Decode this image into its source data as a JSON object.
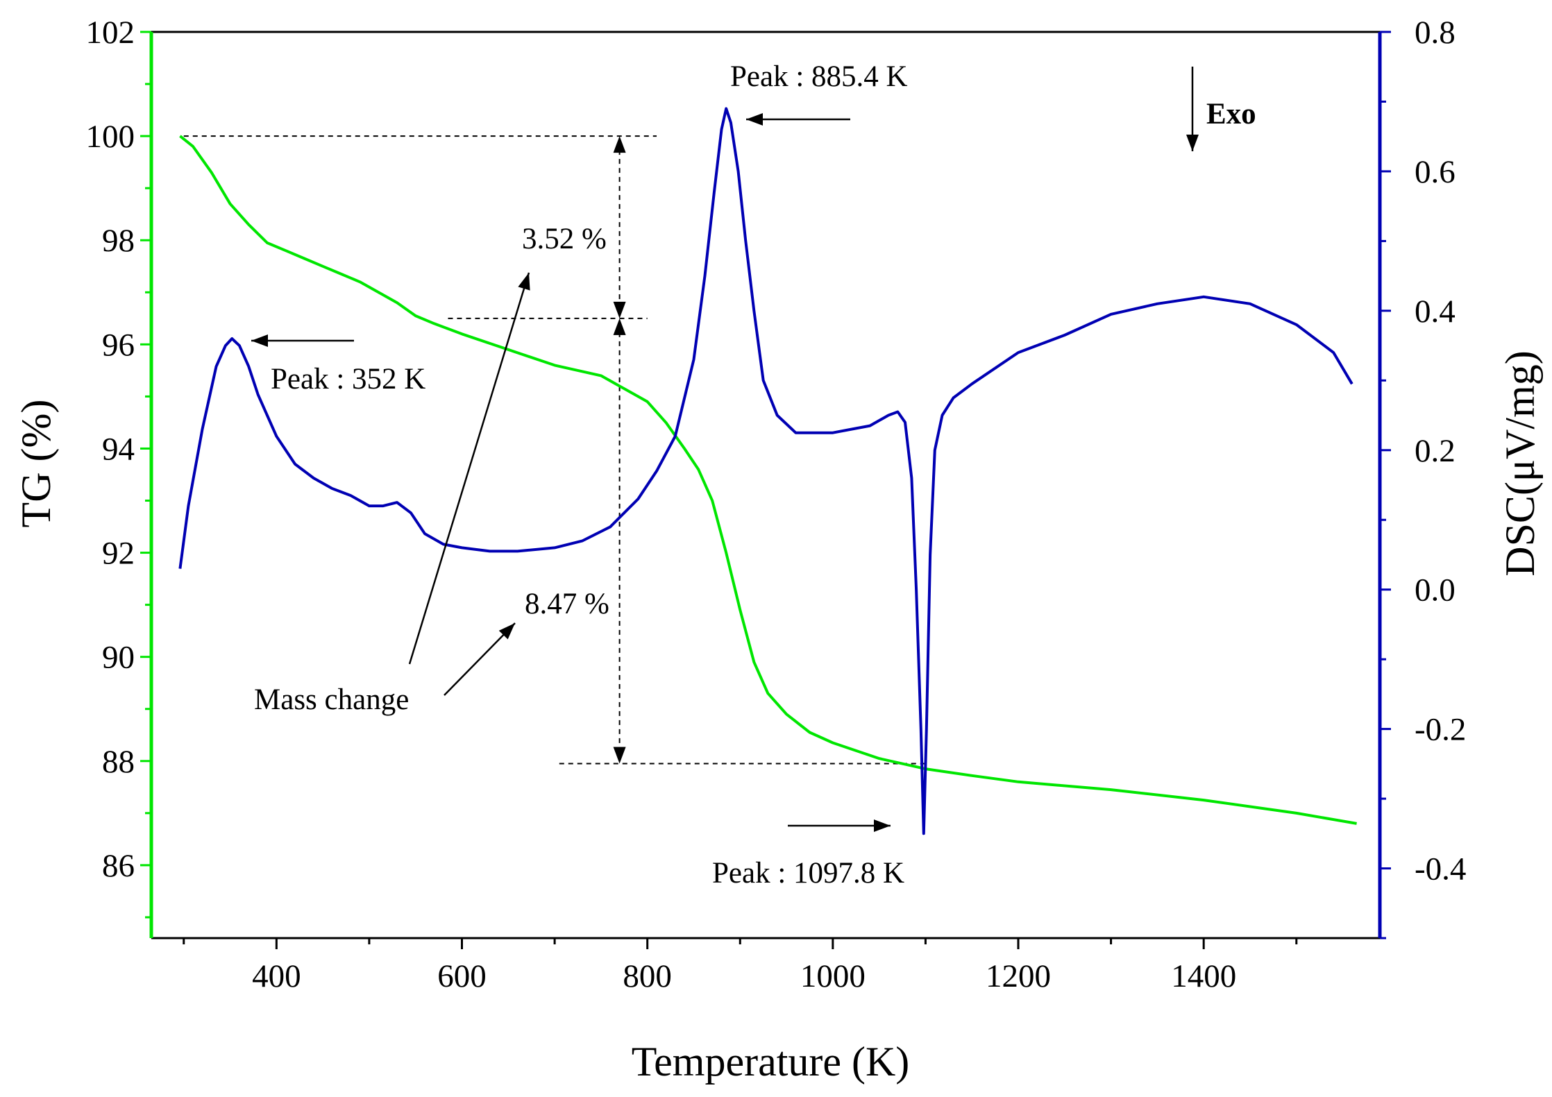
{
  "chart_data": {
    "type": "line",
    "xlabel": "Temperature (K)",
    "ylabel_left": "TG (%)",
    "ylabel_right": "DSC(μV/mg)",
    "xlim": [
      265,
      1590
    ],
    "ylim_left": [
      84.6,
      102
    ],
    "ylim_right": [
      -0.5,
      0.8
    ],
    "x_ticks": [
      400,
      600,
      800,
      1000,
      1200,
      1400
    ],
    "y_left_ticks": [
      86,
      88,
      90,
      92,
      94,
      96,
      98,
      100,
      102
    ],
    "y_right_ticks": [
      "-0.4",
      "-0.2",
      "0.0",
      "0.2",
      "0.4",
      "0.6",
      "0.8"
    ],
    "colors": {
      "tg": "#00e600",
      "dsc": "#0000b3",
      "axis_left": "#00e600",
      "axis_right": "#0000b3"
    },
    "series": [
      {
        "name": "TG",
        "axis": "left",
        "x": [
          296,
          310,
          330,
          350,
          370,
          390,
          410,
          430,
          450,
          470,
          490,
          510,
          530,
          550,
          570,
          600,
          650,
          700,
          750,
          780,
          800,
          820,
          840,
          855,
          870,
          885,
          900,
          915,
          930,
          950,
          975,
          1000,
          1050,
          1100,
          1150,
          1200,
          1300,
          1400,
          1500,
          1565
        ],
        "values": [
          100.0,
          99.8,
          99.3,
          98.7,
          98.3,
          97.95,
          97.8,
          97.65,
          97.5,
          97.35,
          97.2,
          97.0,
          96.8,
          96.55,
          96.4,
          96.2,
          95.9,
          95.6,
          95.4,
          95.1,
          94.9,
          94.5,
          94.0,
          93.6,
          93.0,
          92.0,
          90.9,
          89.9,
          89.3,
          88.9,
          88.55,
          88.35,
          88.05,
          87.85,
          87.72,
          87.6,
          87.45,
          87.25,
          87.0,
          86.8
        ]
      },
      {
        "name": "DSC",
        "axis": "right",
        "x": [
          296,
          305,
          320,
          335,
          345,
          352,
          360,
          370,
          380,
          400,
          420,
          440,
          460,
          480,
          500,
          515,
          530,
          545,
          560,
          580,
          600,
          630,
          660,
          700,
          730,
          760,
          790,
          810,
          830,
          850,
          862,
          872,
          880,
          885,
          890,
          898,
          906,
          915,
          925,
          940,
          960,
          980,
          1000,
          1020,
          1040,
          1060,
          1070,
          1078,
          1085,
          1090,
          1095,
          1098,
          1101,
          1105,
          1110,
          1118,
          1130,
          1150,
          1200,
          1250,
          1300,
          1350,
          1400,
          1450,
          1500,
          1540,
          1560
        ],
        "values": [
          0.03,
          0.12,
          0.23,
          0.32,
          0.35,
          0.36,
          0.35,
          0.32,
          0.28,
          0.22,
          0.18,
          0.16,
          0.145,
          0.135,
          0.12,
          0.12,
          0.125,
          0.11,
          0.08,
          0.065,
          0.06,
          0.055,
          0.055,
          0.06,
          0.07,
          0.09,
          0.13,
          0.17,
          0.22,
          0.33,
          0.45,
          0.57,
          0.66,
          0.69,
          0.67,
          0.6,
          0.5,
          0.4,
          0.3,
          0.25,
          0.225,
          0.225,
          0.225,
          0.23,
          0.235,
          0.25,
          0.255,
          0.24,
          0.16,
          0.0,
          -0.2,
          -0.35,
          -0.2,
          0.05,
          0.2,
          0.25,
          0.275,
          0.295,
          0.34,
          0.365,
          0.395,
          0.41,
          0.42,
          0.41,
          0.38,
          0.34,
          0.295
        ]
      }
    ],
    "annotations": {
      "peak_352": "Peak : 352 K",
      "peak_885": "Peak : 885.4 K",
      "peak_1097": "Peak : 1097.8 K",
      "mass_change_1": "3.52 %",
      "mass_change_2": "8.47 %",
      "mass_change_label": "Mass change",
      "exo": "Exo"
    }
  }
}
